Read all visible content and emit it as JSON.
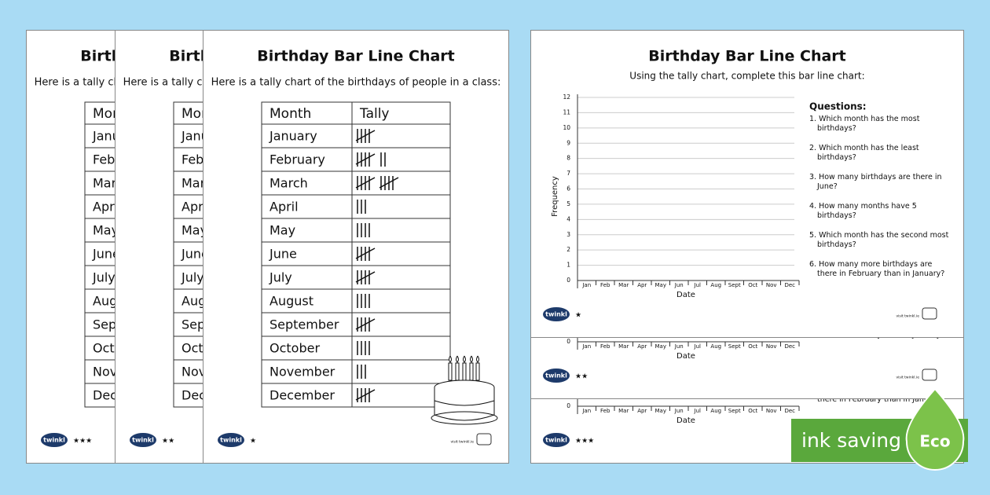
{
  "worksheet": {
    "title": "Birthday Bar Line Chart",
    "intro": "Here is a tally chart of the birthdays of people in a class:",
    "table": {
      "headers": [
        "Month",
        "Tally"
      ],
      "rows": [
        {
          "month": "January",
          "tally": 5
        },
        {
          "month": "February",
          "tally": 7
        },
        {
          "month": "March",
          "tally": 10
        },
        {
          "month": "April",
          "tally": 3
        },
        {
          "month": "May",
          "tally": 4
        },
        {
          "month": "June",
          "tally": 5
        },
        {
          "month": "July",
          "tally": 5
        },
        {
          "month": "August",
          "tally": 4
        },
        {
          "month": "September",
          "tally": 5
        },
        {
          "month": "October",
          "tally": 4
        },
        {
          "month": "November",
          "tally": 3
        },
        {
          "month": "December",
          "tally": 5
        }
      ]
    }
  },
  "chart_sheet": {
    "title": "Birthday Bar Line Chart",
    "instruction": "Using the tally chart, complete this bar line chart:",
    "chart": {
      "ylabel": "Frequency",
      "xlabel": "Date",
      "ylim": [
        0,
        12
      ],
      "yticks": [
        0,
        1,
        2,
        3,
        4,
        5,
        6,
        7,
        8,
        9,
        10,
        11,
        12
      ],
      "categories": [
        "Jan",
        "Feb",
        "Mar",
        "Apr",
        "May",
        "Jun",
        "Jul",
        "Aug",
        "Sept",
        "Oct",
        "Nov",
        "Dec"
      ]
    },
    "questions_title": "Questions:",
    "questions": [
      "1. Which month has the most birthdays?",
      "2. Which month has the least birthdays?",
      "3. How many birthdays are there in June?",
      "4. How many months have 5 birthdays?",
      "5. Which month has the second most birthdays?",
      "6. How many more birthdays are there in February than in January?"
    ]
  },
  "footer": {
    "brand": "twinkl",
    "url": "visit twinkl.ie",
    "stars": [
      "★★★",
      "★★",
      "★"
    ]
  },
  "badge": {
    "text": "ink saving",
    "label": "Eco"
  }
}
